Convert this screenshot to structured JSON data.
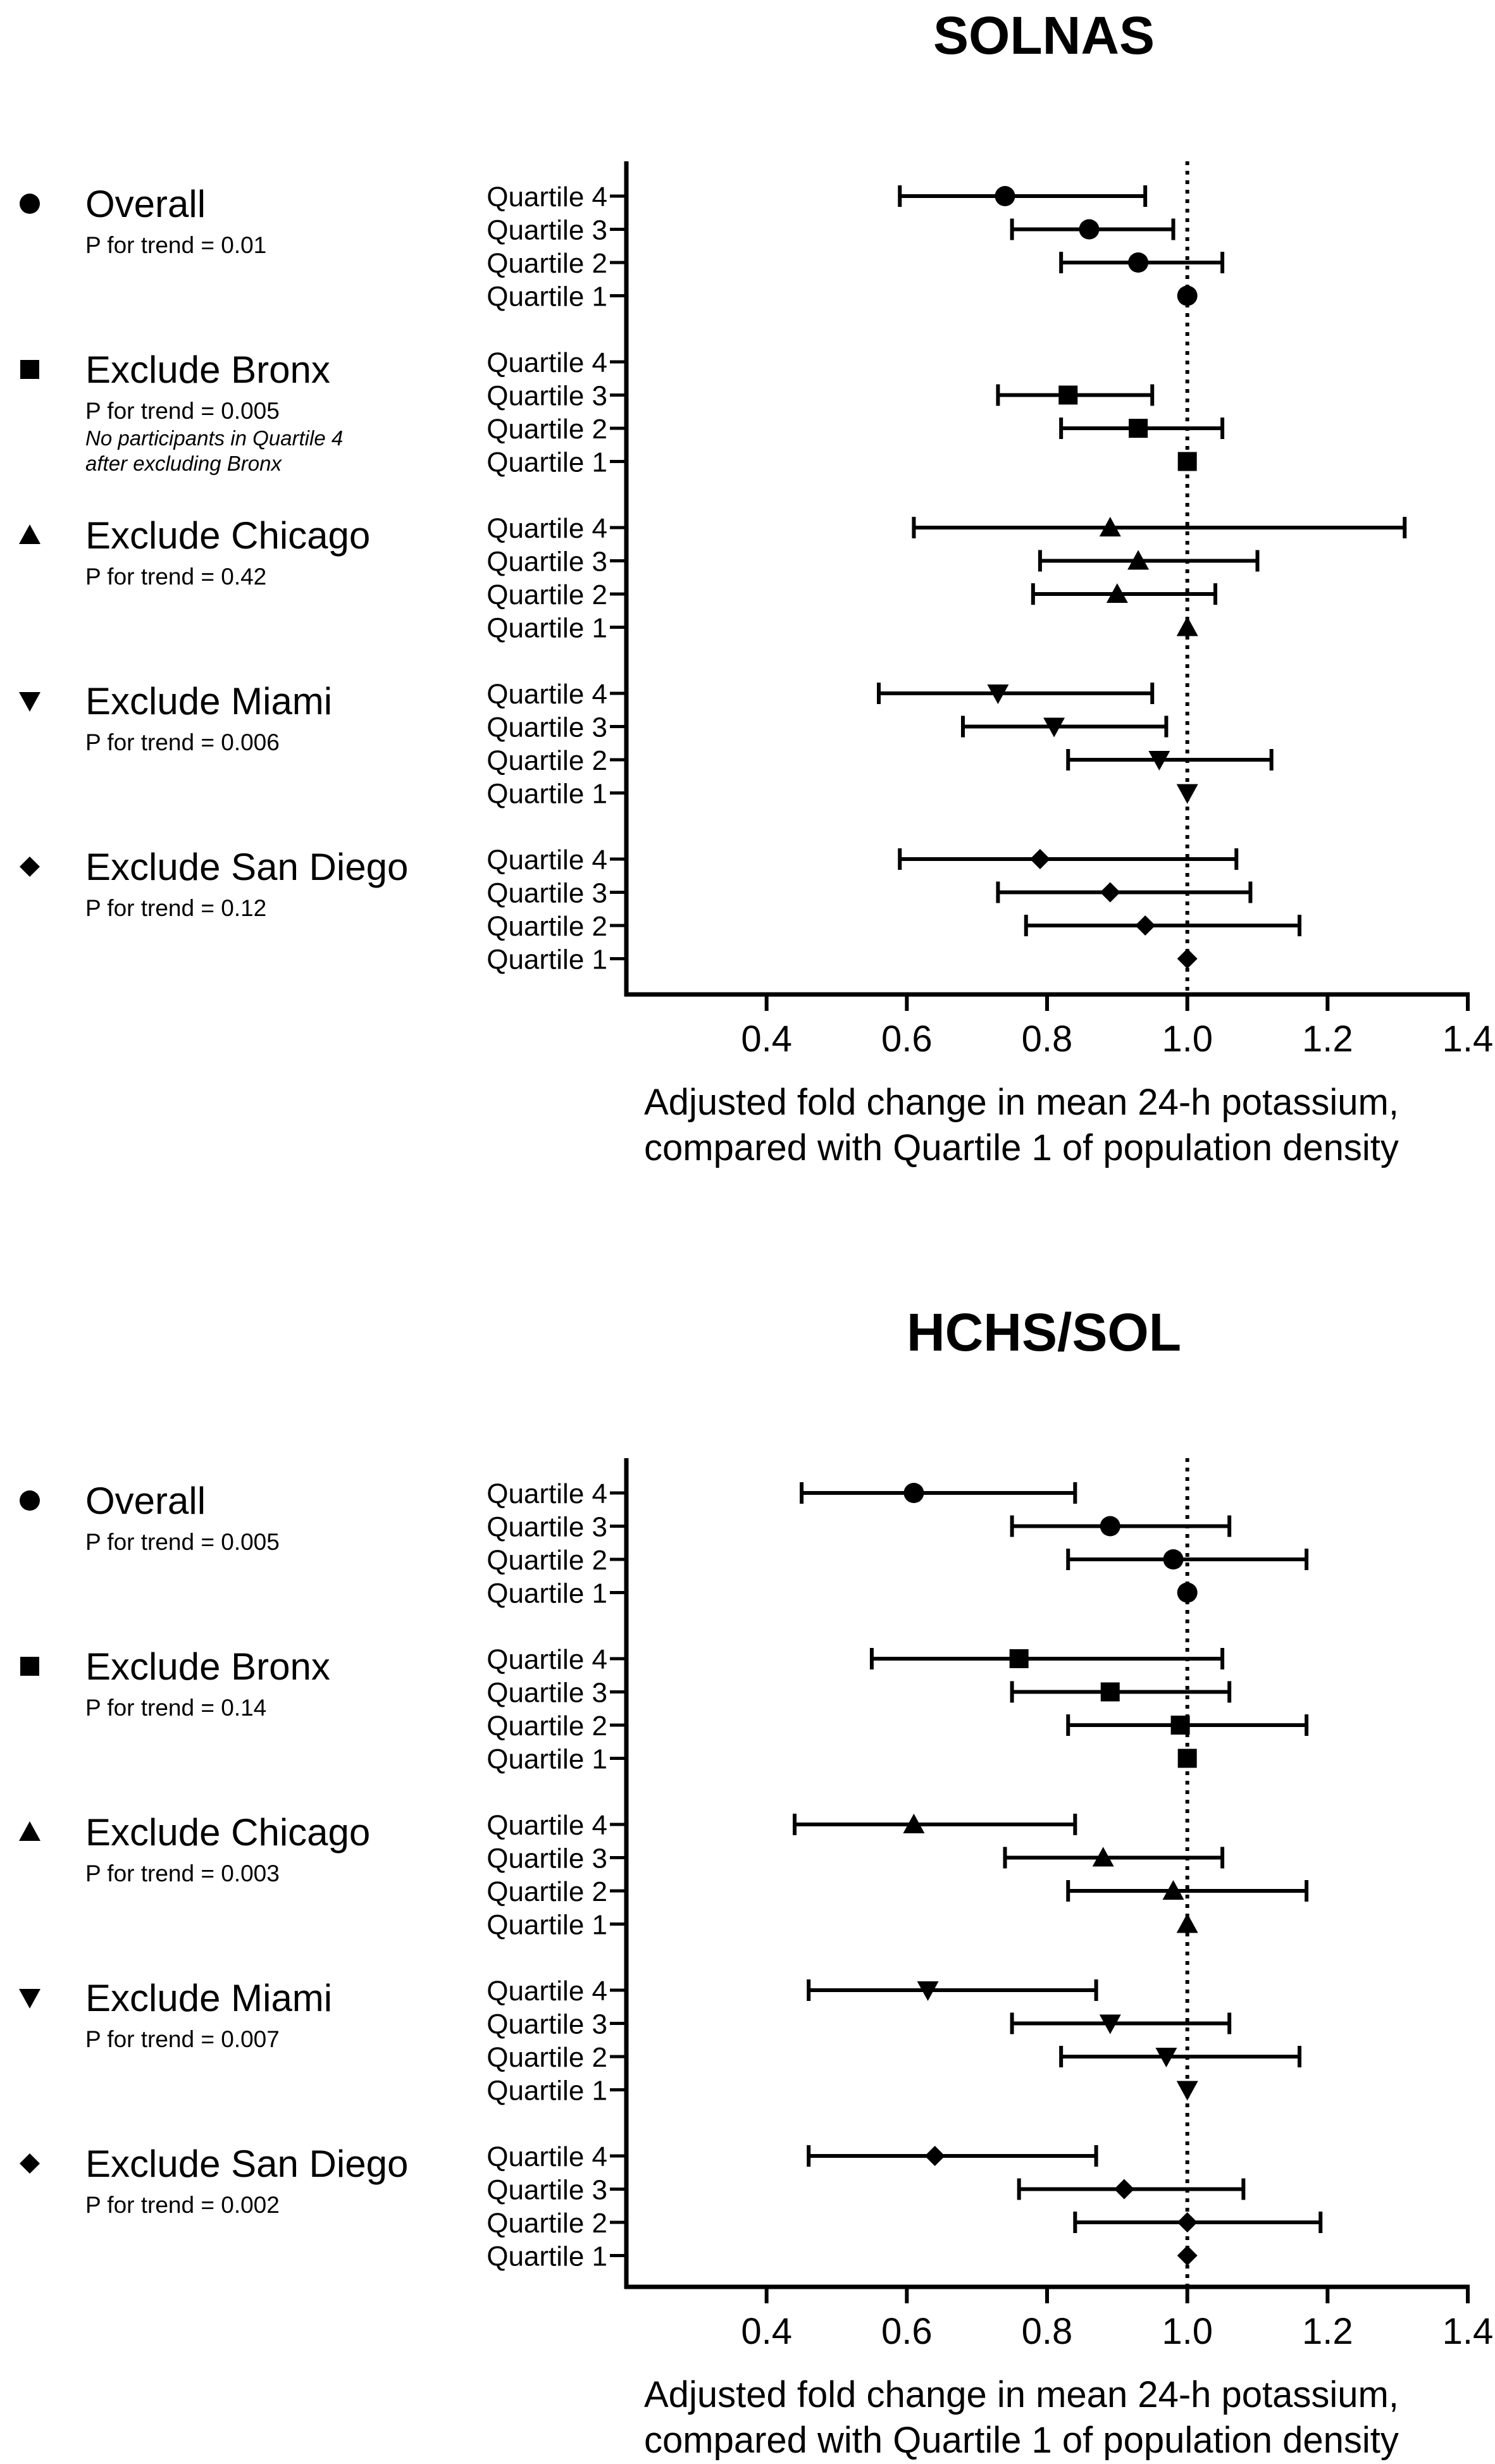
{
  "chart_data": [
    {
      "type": "forest",
      "title": "SOLNAS",
      "xlabel_lines": [
        "Adjusted fold change in mean 24-h potassium,",
        "compared with Quartile 1 of population density"
      ],
      "xlim": [
        0.2,
        1.4
      ],
      "xticks": [
        "0.4",
        "0.6",
        "0.8",
        "1.0",
        "1.2",
        "1.4"
      ],
      "reference_line": 1.0,
      "groups": [
        {
          "name": "Overall",
          "marker": "circle",
          "marker_icon": "circle-marker-icon",
          "trend": "P for trend = 0.01",
          "note": [],
          "rows": [
            {
              "label": "Quartile 4",
              "est": 0.74,
              "lo": 0.59,
              "hi": 0.94
            },
            {
              "label": "Quartile 3",
              "est": 0.86,
              "lo": 0.75,
              "hi": 0.98
            },
            {
              "label": "Quartile 2",
              "est": 0.93,
              "lo": 0.82,
              "hi": 1.05
            },
            {
              "label": "Quartile 1",
              "est": 1.0,
              "lo": null,
              "hi": null
            }
          ]
        },
        {
          "name": "Exclude Bronx",
          "marker": "square",
          "marker_icon": "square-marker-icon",
          "trend": "P for trend = 0.005",
          "note": [
            "No participants in Quartile 4",
            "after excluding Bronx"
          ],
          "rows": [
            {
              "label": "Quartile 4",
              "est": null,
              "lo": null,
              "hi": null
            },
            {
              "label": "Quartile 3",
              "est": 0.83,
              "lo": 0.73,
              "hi": 0.95
            },
            {
              "label": "Quartile 2",
              "est": 0.93,
              "lo": 0.82,
              "hi": 1.05
            },
            {
              "label": "Quartile 1",
              "est": 1.0,
              "lo": null,
              "hi": null
            }
          ]
        },
        {
          "name": "Exclude Chicago",
          "marker": "triangle-up",
          "marker_icon": "triangle-marker-icon",
          "trend": "P for trend = 0.42",
          "note": [],
          "rows": [
            {
              "label": "Quartile 4",
              "est": 0.89,
              "lo": 0.61,
              "hi": 1.31
            },
            {
              "label": "Quartile 3",
              "est": 0.93,
              "lo": 0.79,
              "hi": 1.1
            },
            {
              "label": "Quartile 2",
              "est": 0.9,
              "lo": 0.78,
              "hi": 1.04
            },
            {
              "label": "Quartile 1",
              "est": 1.0,
              "lo": null,
              "hi": null
            }
          ]
        },
        {
          "name": "Exclude Miami",
          "marker": "triangle-down",
          "marker_icon": "inverted-triangle-marker-icon",
          "trend": "P for trend = 0.006",
          "note": [],
          "rows": [
            {
              "label": "Quartile 4",
              "est": 0.73,
              "lo": 0.56,
              "hi": 0.95
            },
            {
              "label": "Quartile 3",
              "est": 0.81,
              "lo": 0.68,
              "hi": 0.97
            },
            {
              "label": "Quartile 2",
              "est": 0.96,
              "lo": 0.83,
              "hi": 1.12
            },
            {
              "label": "Quartile 1",
              "est": 1.0,
              "lo": null,
              "hi": null
            }
          ]
        },
        {
          "name": "Exclude San Diego",
          "marker": "diamond",
          "marker_icon": "diamond-marker-icon",
          "trend": "P for trend = 0.12",
          "note": [],
          "rows": [
            {
              "label": "Quartile 4",
              "est": 0.79,
              "lo": 0.59,
              "hi": 1.07
            },
            {
              "label": "Quartile 3",
              "est": 0.89,
              "lo": 0.73,
              "hi": 1.09
            },
            {
              "label": "Quartile 2",
              "est": 0.94,
              "lo": 0.77,
              "hi": 1.16
            },
            {
              "label": "Quartile 1",
              "est": 1.0,
              "lo": null,
              "hi": null
            }
          ]
        }
      ]
    },
    {
      "type": "forest",
      "title": "HCHS/SOL",
      "xlabel_lines": [
        "Adjusted fold change in mean 24-h potassium,",
        "compared with Quartile 1 of population density"
      ],
      "xlim": [
        0.2,
        1.4
      ],
      "xticks": [
        "0.4",
        "0.6",
        "0.8",
        "1.0",
        "1.2",
        "1.4"
      ],
      "reference_line": 1.0,
      "groups": [
        {
          "name": "Overall",
          "marker": "circle",
          "marker_icon": "circle-marker-icon",
          "trend": "P for trend = 0.005",
          "note": [],
          "rows": [
            {
              "label": "Quartile 4",
              "est": 0.61,
              "lo": 0.45,
              "hi": 0.84
            },
            {
              "label": "Quartile 3",
              "est": 0.89,
              "lo": 0.75,
              "hi": 1.06
            },
            {
              "label": "Quartile 2",
              "est": 0.98,
              "lo": 0.83,
              "hi": 1.17
            },
            {
              "label": "Quartile 1",
              "est": 1.0,
              "lo": null,
              "hi": null
            }
          ]
        },
        {
          "name": "Exclude Bronx",
          "marker": "square",
          "marker_icon": "square-marker-icon",
          "trend": "P for trend = 0.14",
          "note": [],
          "rows": [
            {
              "label": "Quartile 4",
              "est": 0.76,
              "lo": 0.55,
              "hi": 1.05
            },
            {
              "label": "Quartile 3",
              "est": 0.89,
              "lo": 0.75,
              "hi": 1.06
            },
            {
              "label": "Quartile 2",
              "est": 0.99,
              "lo": 0.83,
              "hi": 1.17
            },
            {
              "label": "Quartile 1",
              "est": 1.0,
              "lo": null,
              "hi": null
            }
          ]
        },
        {
          "name": "Exclude Chicago",
          "marker": "triangle-up",
          "marker_icon": "triangle-marker-icon",
          "trend": "P for trend = 0.003",
          "note": [],
          "rows": [
            {
              "label": "Quartile 4",
              "est": 0.61,
              "lo": 0.44,
              "hi": 0.84
            },
            {
              "label": "Quartile 3",
              "est": 0.88,
              "lo": 0.74,
              "hi": 1.05
            },
            {
              "label": "Quartile 2",
              "est": 0.98,
              "lo": 0.83,
              "hi": 1.17
            },
            {
              "label": "Quartile 1",
              "est": 1.0,
              "lo": null,
              "hi": null
            }
          ]
        },
        {
          "name": "Exclude Miami",
          "marker": "triangle-down",
          "marker_icon": "inverted-triangle-marker-icon",
          "trend": "P for trend = 0.007",
          "note": [],
          "rows": [
            {
              "label": "Quartile 4",
              "est": 0.63,
              "lo": 0.46,
              "hi": 0.87
            },
            {
              "label": "Quartile 3",
              "est": 0.89,
              "lo": 0.75,
              "hi": 1.06
            },
            {
              "label": "Quartile 2",
              "est": 0.97,
              "lo": 0.82,
              "hi": 1.16
            },
            {
              "label": "Quartile 1",
              "est": 1.0,
              "lo": null,
              "hi": null
            }
          ]
        },
        {
          "name": "Exclude San Diego",
          "marker": "diamond",
          "marker_icon": "diamond-marker-icon",
          "trend": "P for trend = 0.002",
          "note": [],
          "rows": [
            {
              "label": "Quartile 4",
              "est": 0.64,
              "lo": 0.46,
              "hi": 0.87
            },
            {
              "label": "Quartile 3",
              "est": 0.91,
              "lo": 0.76,
              "hi": 1.08
            },
            {
              "label": "Quartile 2",
              "est": 1.0,
              "lo": 0.84,
              "hi": 1.19
            },
            {
              "label": "Quartile 1",
              "est": 1.0,
              "lo": null,
              "hi": null
            }
          ]
        }
      ]
    }
  ]
}
